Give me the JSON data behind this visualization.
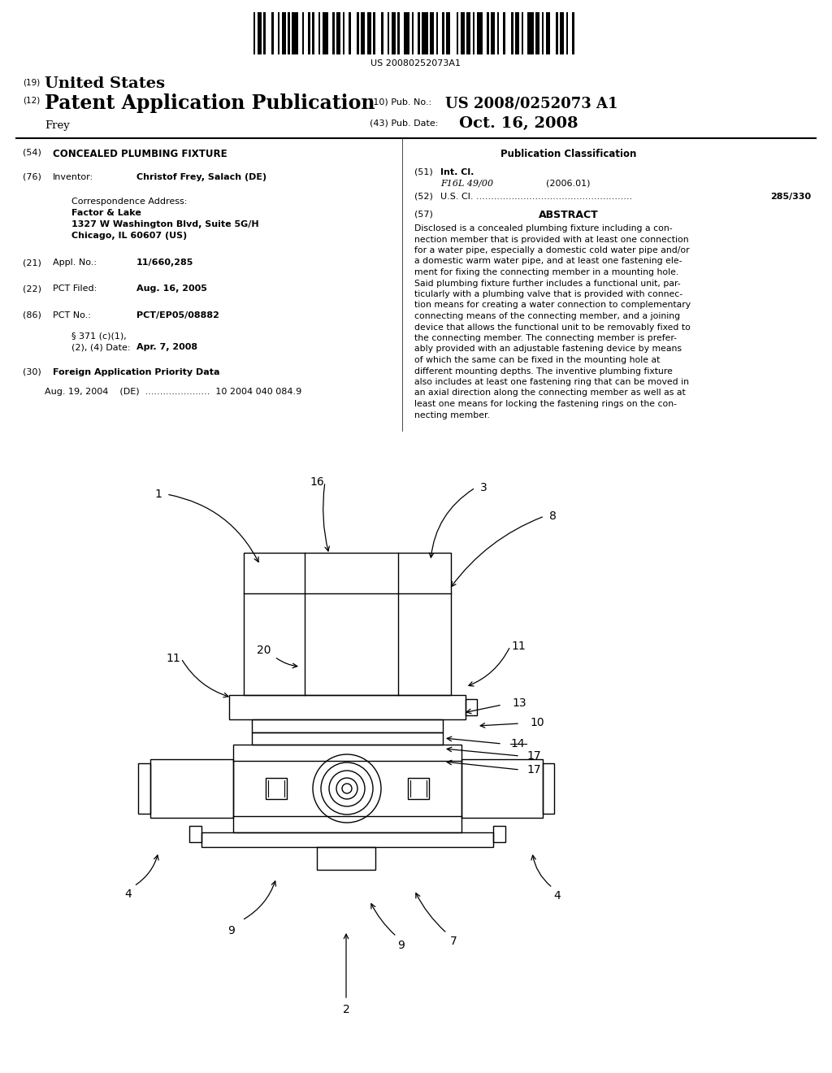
{
  "bg_color": "#ffffff",
  "barcode_text": "US 20080252073A1",
  "title_19": "(19)",
  "title_19_text": "United States",
  "title_12": "(12)",
  "title_12_text": "Patent Application Publication",
  "pub_no_label": "(10) Pub. No.:",
  "pub_no_value": "US 2008/0252073 A1",
  "inventor_name": "Frey",
  "pub_date_label": "(43) Pub. Date:",
  "pub_date_value": "Oct. 16, 2008",
  "field_54_label": "(54)",
  "field_54_text": "CONCEALED PLUMBING FIXTURE",
  "pub_class_header": "Publication Classification",
  "field_51_label": "(51)",
  "field_51_text": "Int. Cl.",
  "field_51_code": "F16L 49/00",
  "field_51_year": "(2006.01)",
  "field_52_label": "(52)",
  "field_52_text": "U.S. Cl. .....................................................",
  "field_52_value": "285/330",
  "field_57_label": "(57)",
  "field_57_header": "ABSTRACT",
  "abstract_text": "Disclosed is a concealed plumbing fixture including a con-nection member that is provided with at least one connection for a water pipe, especially a domestic cold water pipe and/or a domestic warm water pipe, and at least one fastening ele-ment for fixing the connecting member in a mounting hole. Said plumbing fixture further includes a functional unit, par-ticularly with a plumbing valve that is provided with connec-tion means for creating a water connection to complementary connecting means of the connecting member, and a joining device that allows the functional unit to be removably fixed to the connecting member. The connecting member is prefer-ably provided with an adjustable fastening device by means of which the same can be fixed in the mounting hole at different mounting depths. The inventive plumbing fixture also includes at least one fastening ring that can be moved in an axial direction along the connecting member as well as at least one means for locking the fastening rings on the con-necting member.",
  "field_76_label": "(76)",
  "field_76_name": "Inventor:",
  "field_76_value": "Christof Frey, Salach (DE)",
  "corr_label": "Correspondence Address:",
  "corr_firm": "Factor & Lake",
  "corr_addr1": "1327 W Washington Blvd, Suite 5G/H",
  "corr_addr2": "Chicago, IL 60607 (US)",
  "field_21_label": "(21)",
  "field_21_name": "Appl. No.:",
  "field_21_value": "11/660,285",
  "field_22_label": "(22)",
  "field_22_name": "PCT Filed:",
  "field_22_value": "Aug. 16, 2005",
  "field_86_label": "(86)",
  "field_86_name": "PCT No.:",
  "field_86_value": "PCT/EP05/08882",
  "field_86b_name": "§ 371 (c)(1),",
  "field_86c_name": "(2), (4) Date:",
  "field_86c_value": "Apr. 7, 2008",
  "field_30_label": "(30)",
  "field_30_text": "Foreign Application Priority Data",
  "field_30_data": "Aug. 19, 2004    (DE)  ......................  10 2004 040 084.9",
  "line_color": "#000000",
  "text_color": "#000000"
}
